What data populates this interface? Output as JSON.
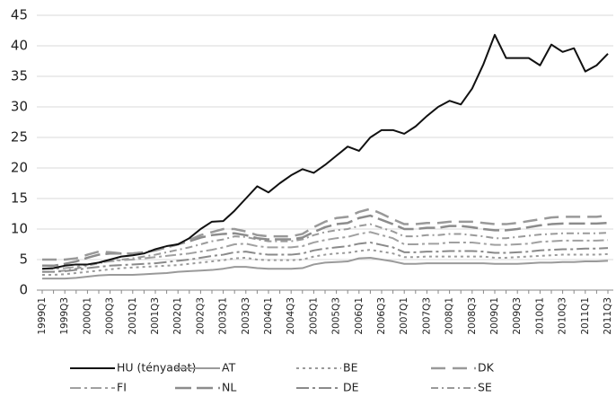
{
  "chart_data": {
    "type": "line",
    "categories": [
      "1999Q1",
      null,
      "1999Q3",
      null,
      "2000Q1",
      null,
      "2000Q3",
      null,
      "2001Q1",
      null,
      "2001Q3",
      null,
      "2002Q1",
      null,
      "2002Q3",
      null,
      "2003Q1",
      null,
      "2003Q3",
      null,
      "2004Q1",
      null,
      "2004Q3",
      null,
      "2005Q1",
      null,
      "2005Q3",
      null,
      "2006Q1",
      null,
      "2006Q3",
      null,
      "2007Q1",
      null,
      "2007Q3",
      null,
      "2008Q1",
      null,
      "2008Q3",
      null,
      "2009Q1",
      null,
      "2009Q3",
      null,
      "2010Q1",
      null,
      "2010Q3",
      null,
      "2011Q1",
      null,
      "2011Q3"
    ],
    "ylim": [
      0,
      45
    ],
    "yticks": [
      0,
      5,
      10,
      15,
      20,
      25,
      30,
      35,
      40,
      45
    ],
    "grid": true,
    "series": [
      {
        "name": "HU (tényadat)",
        "color": "#111111",
        "width": 2,
        "dash": "none",
        "values": [
          3.5,
          3.6,
          4,
          4.2,
          4.2,
          4.5,
          5,
          5.5,
          5.7,
          6,
          6.7,
          7.2,
          7.5,
          8.5,
          10,
          11.2,
          11.3,
          13,
          15,
          17,
          16,
          17.5,
          18.8,
          19.8,
          19.2,
          20.5,
          22,
          23.5,
          22.8,
          25,
          26.2,
          26.2,
          25.6,
          26.8,
          28.5,
          30,
          31,
          30.4,
          33,
          37,
          41.8,
          38,
          38,
          38,
          36.8,
          40.2,
          39,
          39.6,
          35.8,
          36.8,
          38.7
        ]
      },
      {
        "name": "AT",
        "color": "#9a9a9a",
        "width": 2,
        "dash": "none",
        "values": [
          1.9,
          1.9,
          1.9,
          2,
          2.2,
          2.4,
          2.5,
          2.5,
          2.5,
          2.6,
          2.7,
          2.8,
          3,
          3.1,
          3.2,
          3.3,
          3.5,
          3.8,
          3.8,
          3.6,
          3.5,
          3.5,
          3.5,
          3.6,
          4.2,
          4.5,
          4.6,
          4.7,
          5.2,
          5.3,
          5,
          4.7,
          4.3,
          4.3,
          4.4,
          4.4,
          4.4,
          4.4,
          4.4,
          4.4,
          4.3,
          4.3,
          4.3,
          4.4,
          4.5,
          4.5,
          4.6,
          4.6,
          4.7,
          4.7,
          4.8
        ]
      },
      {
        "name": "BE",
        "color": "#9a9a9a",
        "width": 2,
        "dash": "3,4",
        "values": [
          2.5,
          2.5,
          2.6,
          2.8,
          3,
          3.2,
          3.4,
          3.6,
          3.7,
          3.8,
          3.9,
          4,
          4.1,
          4.3,
          4.5,
          4.7,
          4.9,
          5.2,
          5.3,
          5,
          4.9,
          4.9,
          4.9,
          5,
          5.5,
          5.8,
          6,
          6.1,
          6.4,
          6.6,
          6.3,
          6,
          5.4,
          5.4,
          5.5,
          5.5,
          5.5,
          5.5,
          5.5,
          5.5,
          5.3,
          5.3,
          5.4,
          5.5,
          5.6,
          5.7,
          5.8,
          5.8,
          5.8,
          5.8,
          5.9
        ]
      },
      {
        "name": "DK",
        "color": "#999999",
        "width": 2.5,
        "dash": "16,8",
        "values": [
          5,
          5,
          5,
          5.2,
          5.8,
          6.3,
          6.2,
          6,
          6,
          6.2,
          6.5,
          7,
          7.5,
          8.2,
          9,
          9.5,
          10,
          10,
          9.6,
          9,
          8.8,
          8.8,
          8.8,
          9.2,
          10.3,
          11.2,
          11.8,
          12,
          12.8,
          13.3,
          12.5,
          11.6,
          10.8,
          10.8,
          11,
          11,
          11.2,
          11.2,
          11.2,
          11,
          10.8,
          10.8,
          11,
          11.3,
          11.6,
          11.9,
          12,
          12,
          12,
          12,
          12.2
        ]
      },
      {
        "name": "FI",
        "color": "#a0a0a0",
        "width": 2,
        "dash": "12,4,3,4",
        "values": [
          3.5,
          3.5,
          3.6,
          3.8,
          4.2,
          4.5,
          4.7,
          4.9,
          5,
          5.2,
          5.4,
          5.6,
          5.8,
          6,
          6.3,
          6.6,
          7,
          7.5,
          7.6,
          7.2,
          7,
          7,
          7,
          7.2,
          7.8,
          8.2,
          8.5,
          8.7,
          9.2,
          9.5,
          9,
          8.5,
          7.5,
          7.5,
          7.6,
          7.6,
          7.8,
          7.8,
          7.8,
          7.6,
          7.4,
          7.4,
          7.5,
          7.6,
          7.9,
          8,
          8.1,
          8.1,
          8.1,
          8.1,
          8.2
        ]
      },
      {
        "name": "NL",
        "color": "#8c8c8c",
        "width": 2.5,
        "dash": "18,6",
        "values": [
          4,
          4,
          4.3,
          4.7,
          5.3,
          5.8,
          6,
          6,
          6,
          6.2,
          6.5,
          7,
          7.5,
          8,
          8.6,
          9,
          9.2,
          9.3,
          9,
          8.5,
          8.3,
          8.3,
          8.3,
          8.6,
          9.5,
          10.3,
          10.8,
          11,
          11.8,
          12.2,
          11.5,
          10.8,
          10,
          10,
          10.2,
          10.2,
          10.5,
          10.5,
          10.3,
          10,
          9.8,
          9.8,
          10,
          10.3,
          10.6,
          10.8,
          10.9,
          10.9,
          10.9,
          10.9,
          11
        ]
      },
      {
        "name": "DE",
        "color": "#8a8a8a",
        "width": 2,
        "dash": "14,4,3,4",
        "values": [
          3,
          3,
          3.1,
          3.3,
          3.6,
          3.8,
          4,
          4.1,
          4.2,
          4.3,
          4.4,
          4.6,
          4.8,
          5,
          5.3,
          5.6,
          5.8,
          6.2,
          6.3,
          6,
          5.8,
          5.8,
          5.8,
          6,
          6.5,
          6.8,
          7,
          7.2,
          7.6,
          7.8,
          7.4,
          7,
          6.2,
          6.2,
          6.3,
          6.3,
          6.4,
          6.4,
          6.4,
          6.3,
          6.1,
          6.1,
          6.2,
          6.3,
          6.5,
          6.6,
          6.7,
          6.7,
          6.8,
          6.8,
          6.9
        ]
      },
      {
        "name": "SE",
        "color": "#9a9a9a",
        "width": 2,
        "dash": "8,4,2,4",
        "values": [
          3,
          3,
          3.2,
          3.5,
          4,
          4.4,
          4.8,
          5,
          5.2,
          5.5,
          5.8,
          6.2,
          6.6,
          7,
          7.5,
          8,
          8.3,
          8.8,
          8.7,
          8.3,
          8,
          8,
          8,
          8.3,
          9,
          9.5,
          9.8,
          10,
          10.5,
          10.8,
          10.2,
          9.6,
          8.8,
          8.8,
          9,
          9,
          9.2,
          9.2,
          9,
          8.8,
          8.5,
          8.5,
          8.7,
          8.9,
          9.1,
          9.2,
          9.3,
          9.3,
          9.3,
          9.3,
          9.4
        ]
      }
    ]
  }
}
